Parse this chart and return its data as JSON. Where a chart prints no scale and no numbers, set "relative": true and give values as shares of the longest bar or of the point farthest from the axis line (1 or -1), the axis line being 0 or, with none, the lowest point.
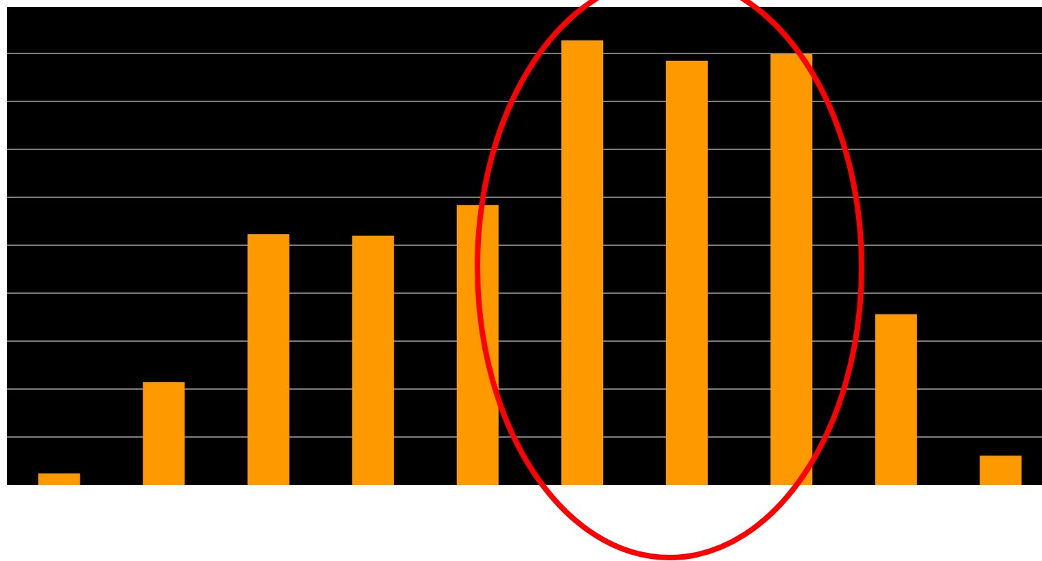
{
  "chart_data": {
    "type": "bar",
    "relative": true,
    "grid": "y",
    "color": "#ff9900",
    "categories": [
      null,
      null,
      null,
      null,
      null,
      null,
      null,
      null,
      null,
      null
    ],
    "values": [
      0.026,
      0.231,
      0.564,
      0.561,
      0.63,
      1,
      0.954,
      0.969,
      0.384,
      0.066
    ]
  }
}
